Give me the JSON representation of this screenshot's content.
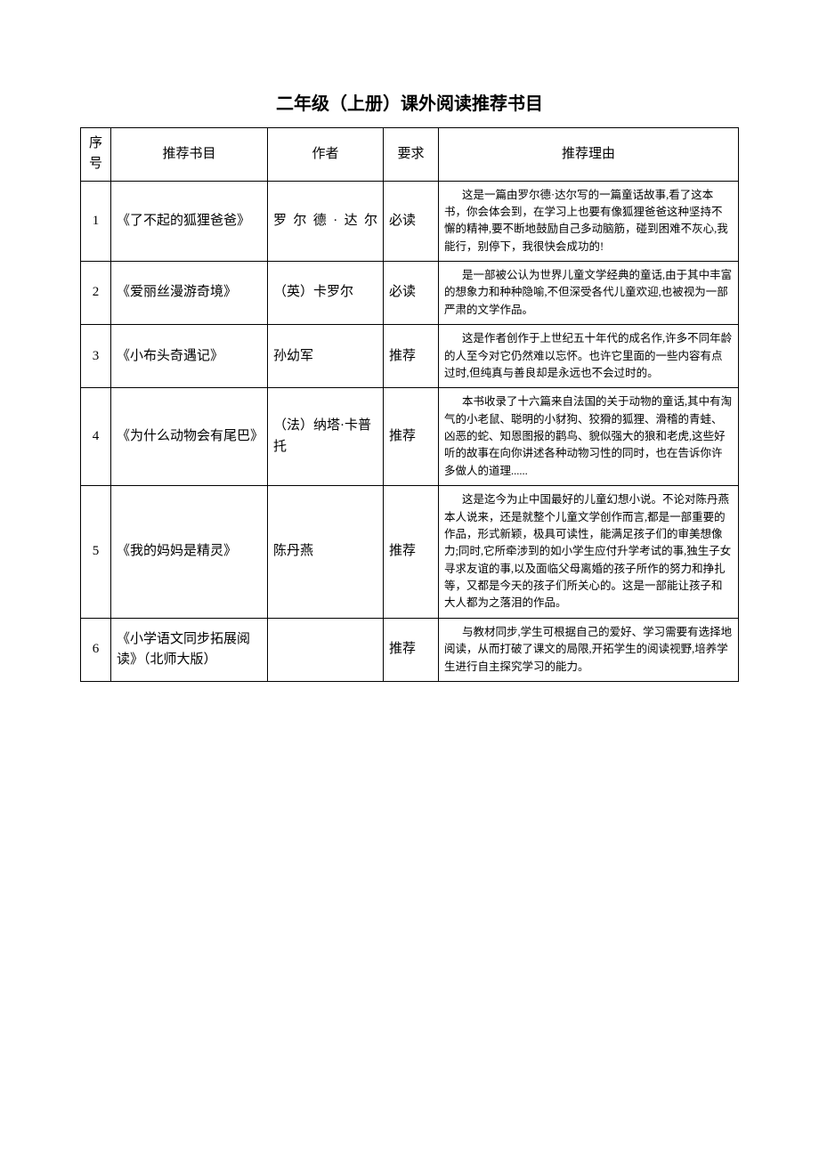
{
  "title": "二年级（上册）课外阅读推荐书目",
  "title_fontsize": 20,
  "colors": {
    "text": "#000000",
    "background": "#ffffff",
    "border": "#000000"
  },
  "fontsizes": {
    "header": 15,
    "body": 15,
    "reason": 12.5
  },
  "columns": [
    "序号",
    "推荐书目",
    "作者",
    "要求",
    "推荐理由"
  ],
  "rows": [
    {
      "idx": "1",
      "book": "《了不起的狐狸爸爸》",
      "author": "罗尔德·达尔",
      "author_justify": true,
      "req": "必读",
      "reason": "这是一篇由罗尔德·达尔写的一篇童话故事,看了这本书，你会体会到，在学习上也要有像狐狸爸爸这种坚持不懈的精神,要不断地鼓励自己多动脑筋，碰到困难不灰心,我能行，别停下，我很快会成功的!"
    },
    {
      "idx": "2",
      "book": "《爱丽丝漫游奇境》",
      "author": "（英）卡罗尔",
      "author_justify": false,
      "req": "必读",
      "reason": "是一部被公认为世界儿童文学经典的童话,由于其中丰富的想象力和种种隐喻,不但深受各代儿童欢迎,也被视为一部严肃的文学作品。"
    },
    {
      "idx": "3",
      "book": "《小布头奇遇记》",
      "author": "孙幼军",
      "author_justify": false,
      "req": "推荐",
      "reason": "这是作者创作于上世纪五十年代的成名作,许多不同年龄的人至今对它仍然难以忘怀。也许它里面的一些内容有点过时,但纯真与善良却是永远也不会过时的。"
    },
    {
      "idx": "4",
      "book": "《为什么动物会有尾巴》",
      "author": "（法）纳塔·卡普托",
      "author_justify": true,
      "req": "推荐",
      "reason": "本书收录了十六篇来自法国的关于动物的童话,其中有淘气的小老鼠、聪明的小豺狗、狡猾的狐狸、滑稽的青蛙、凶恶的蛇、知恩图报的鹳鸟、貌似强大的狼和老虎,这些好听的故事在向你讲述各种动物习性的同时，也在告诉你许多做人的道理......"
    },
    {
      "idx": "5",
      "book": "《我的妈妈是精灵》",
      "author": "陈丹燕",
      "author_justify": false,
      "req": "推荐",
      "reason": "这是迄今为止中国最好的儿童幻想小说。不论对陈丹燕本人说来，还是就整个儿童文学创作而言,都是一部重要的作品，形式新颖，极具可读性，能满足孩子们的审美想像力;同时,它所牵涉到的如小学生应付升学考试的事,独生子女寻求友谊的事,以及面临父母离婚的孩子所作的努力和挣扎等，又都是今天的孩子们所关心的。这是一部能让孩子和大人都为之落泪的作品。"
    },
    {
      "idx": "6",
      "book": "《小学语文同步拓展阅读》（北师大版）",
      "author": "",
      "author_justify": false,
      "req": "推荐",
      "reason": "与教材同步,学生可根据自己的爱好、学习需要有选择地阅读，从而打破了课文的局限,开拓学生的阅读视野,培养学生进行自主探究学习的能力。"
    }
  ]
}
